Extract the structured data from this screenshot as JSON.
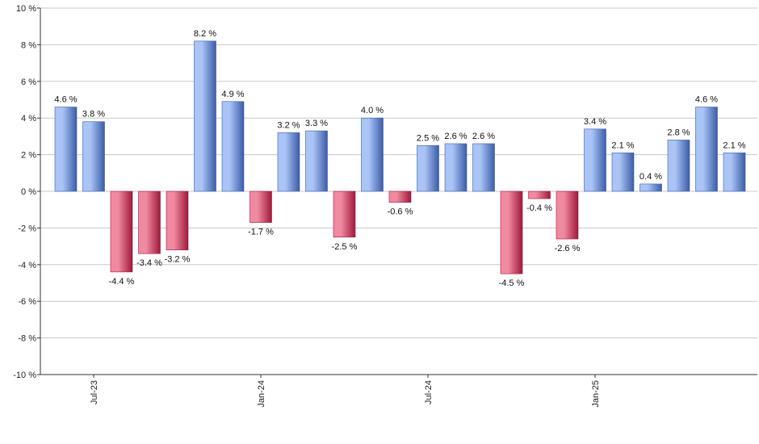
{
  "chart_data": {
    "type": "bar",
    "title": "",
    "xlabel": "",
    "ylabel": "",
    "ylim": [
      -10,
      10
    ],
    "y_ticks": [
      -10,
      -8,
      -6,
      -4,
      -2,
      0,
      2,
      4,
      6,
      8,
      10
    ],
    "y_tick_labels": [
      "-10 %",
      "-8 %",
      "-6 %",
      "-4 %",
      "-2 %",
      "0 %",
      "2 %",
      "4 %",
      "6 %",
      "8 %",
      "10 %"
    ],
    "x_tick_labels": [
      {
        "label": "Jul-23",
        "index": 1
      },
      {
        "label": "Jan-24",
        "index": 7
      },
      {
        "label": "Jul-24",
        "index": 13
      },
      {
        "label": "Jan-25",
        "index": 19
      }
    ],
    "values": [
      4.6,
      3.8,
      -4.4,
      -3.4,
      -3.2,
      8.2,
      4.9,
      -1.7,
      3.2,
      3.3,
      -2.5,
      4.0,
      -0.6,
      2.5,
      2.6,
      2.6,
      -4.5,
      -0.4,
      -2.6,
      3.4,
      2.1,
      0.4,
      2.8,
      4.6,
      2.1
    ],
    "value_labels": [
      "4.6 %",
      "3.8 %",
      "-4.4 %",
      "-3.4 %",
      "-3.2 %",
      "8.2 %",
      "4.9 %",
      "-1.7 %",
      "3.2 %",
      "3.3 %",
      "-2.5 %",
      "4.0 %",
      "-0.6 %",
      "2.5 %",
      "2.6 %",
      "2.6 %",
      "-4.5 %",
      "-0.4 %",
      "-2.6 %",
      "3.4 %",
      "2.1 %",
      "0.4 %",
      "2.8 %",
      "4.6 %",
      "2.1 %"
    ],
    "grid": true,
    "colors": {
      "positive_light": "#a9c4f5",
      "positive_dark": "#3b5ca8",
      "negative_light": "#f08aa0",
      "negative_dark": "#a0183a"
    }
  }
}
